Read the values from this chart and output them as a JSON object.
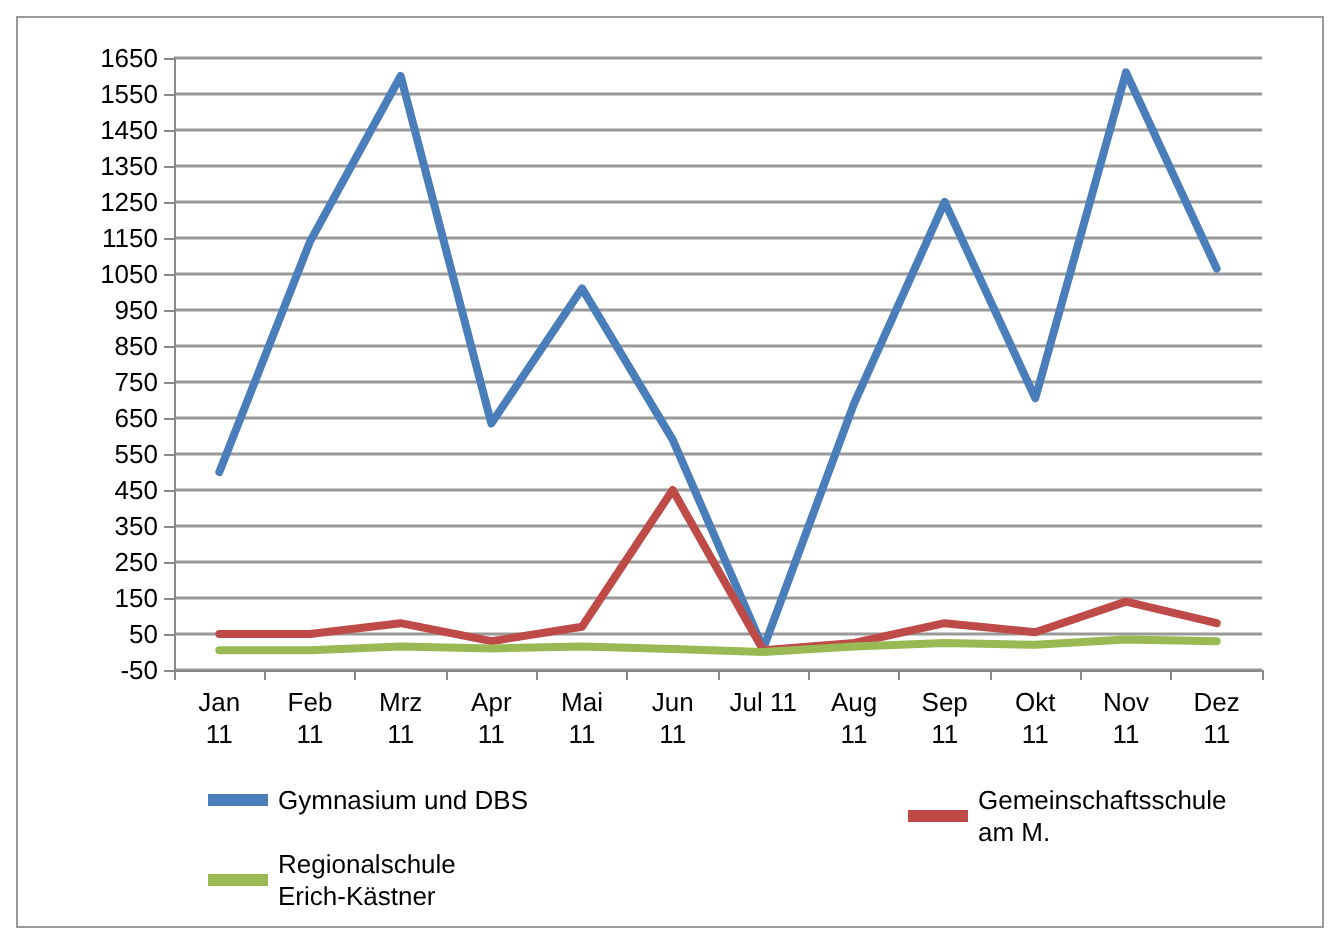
{
  "chart_data": {
    "type": "line",
    "categories": [
      "Jan\n11",
      "Feb\n11",
      "Mrz\n11",
      "Apr\n11",
      "Mai\n11",
      "Jun\n11",
      "Jul 11",
      "Aug\n11",
      "Sep\n11",
      "Okt\n11",
      "Nov\n11",
      "Dez\n11"
    ],
    "series": [
      {
        "name": "Gymnasium und DBS",
        "color": "#4a7ebb",
        "values": [
          500,
          1140,
          1600,
          635,
          1010,
          590,
          10,
          690,
          1250,
          705,
          1610,
          1065
        ]
      },
      {
        "name": "Gemeinschaftsschule\nam M.",
        "color": "#be4b48",
        "values": [
          50,
          50,
          80,
          30,
          70,
          450,
          5,
          25,
          80,
          55,
          140,
          80
        ]
      },
      {
        "name": "Regionalschule\nErich-Kästner",
        "color": "#98b954",
        "values": [
          5,
          5,
          15,
          10,
          15,
          8,
          0,
          15,
          25,
          20,
          35,
          30
        ]
      }
    ],
    "ylim": [
      -50,
      1650
    ],
    "yticks": [
      -50,
      50,
      150,
      250,
      350,
      450,
      550,
      650,
      750,
      850,
      950,
      1050,
      1150,
      1250,
      1350,
      1450,
      1550,
      1650
    ],
    "grid": "y",
    "legend": "bottom",
    "marker": "none",
    "line_style": "solid"
  }
}
